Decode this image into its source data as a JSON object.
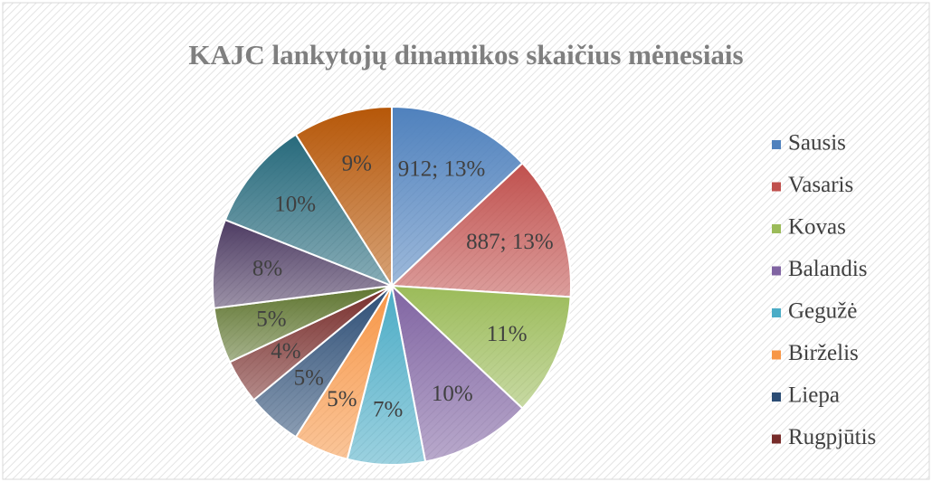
{
  "chart_data": {
    "type": "pie",
    "title": "KAJC lankytojų dinamikos  skaičius mėnesiais",
    "categories": [
      "Sausis",
      "Vasaris",
      "Kovas",
      "Balandis",
      "Gegužė",
      "Birželis",
      "Liepa",
      "Rugpjūtis",
      null,
      null,
      null,
      null
    ],
    "values": [
      13,
      13,
      11,
      10,
      7,
      5,
      5,
      4,
      5,
      8,
      10,
      9
    ],
    "value_labels": [
      "912; 13%",
      "887; 13%",
      "11%",
      "10%",
      "7%",
      "5%",
      "5%",
      "4%",
      "5%",
      "8%",
      "10%",
      "9%"
    ],
    "colors": [
      "#4f81bd",
      "#c0504d",
      "#9bbb59",
      "#8064a2",
      "#4bacc6",
      "#f79646",
      "#2c4d75",
      "#772c2a",
      "#5f7530",
      "#4d3b62",
      "#276a7c",
      "#b65708"
    ],
    "legend": "right"
  }
}
